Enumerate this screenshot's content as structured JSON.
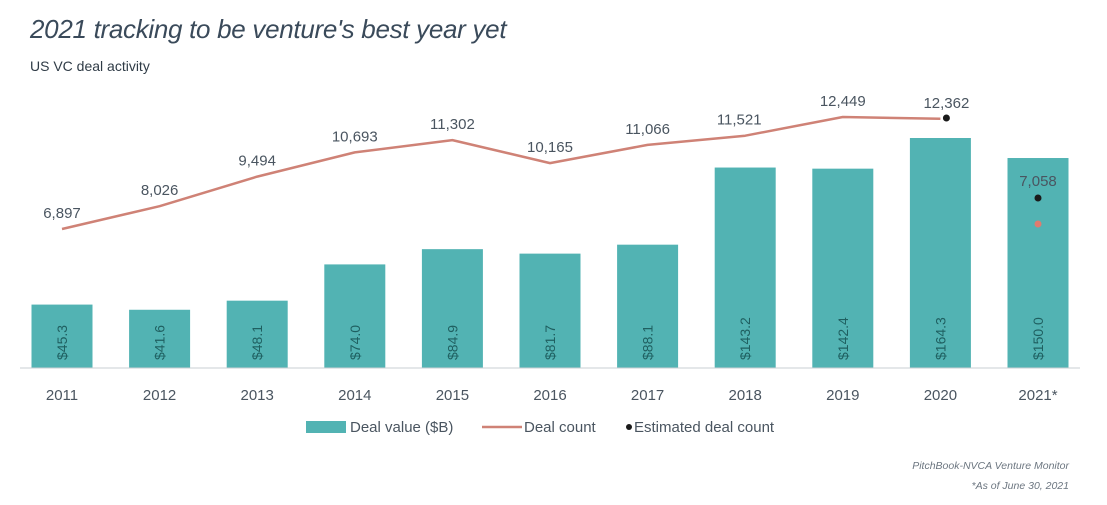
{
  "header": {
    "title": "2021 tracking to be venture's best year yet",
    "subtitle": "US VC deal activity"
  },
  "footer": {
    "source": "PitchBook-NVCA Venture Monitor",
    "note": "*As of June 30, 2021"
  },
  "colors": {
    "bar": "#52b3b3",
    "line": "#cf8276",
    "estimate_dot": "#1a1a1a",
    "estimate_line_point": "#e07b6f",
    "text": "#4a5560"
  },
  "chart_data": {
    "type": "bar",
    "title": "2021 tracking to be venture's best year yet",
    "subtitle": "US VC deal activity",
    "categories": [
      "2011",
      "2012",
      "2013",
      "2014",
      "2015",
      "2016",
      "2017",
      "2018",
      "2019",
      "2020",
      "2021*"
    ],
    "series": [
      {
        "name": "Deal value ($B)",
        "type": "bar",
        "values": [
          45.3,
          41.6,
          48.1,
          74.0,
          84.9,
          81.7,
          88.1,
          143.2,
          142.4,
          164.3,
          150.0
        ],
        "labels": [
          "$45.3",
          "$41.6",
          "$48.1",
          "$74.0",
          "$84.9",
          "$81.7",
          "$88.1",
          "$143.2",
          "$142.4",
          "$164.3",
          "$150.0"
        ]
      },
      {
        "name": "Deal count",
        "type": "line",
        "values": [
          6897,
          8026,
          9494,
          10693,
          11302,
          10165,
          11066,
          11521,
          12449,
          12362,
          7058
        ],
        "labels": [
          "6,897",
          "8,026",
          "9,494",
          "10,693",
          "11,302",
          "10,165",
          "11,066",
          "11,521",
          "12,449",
          "12,362",
          "7,058"
        ]
      },
      {
        "name": "Estimated deal count",
        "type": "scatter",
        "points": [
          {
            "category": "2020",
            "value": 12362
          },
          {
            "category": "2021*",
            "value": 7058
          }
        ]
      }
    ],
    "legend": {
      "position": "bottom",
      "entries": [
        "Deal value ($B)",
        "Deal count",
        "Estimated deal count"
      ]
    },
    "grid": false
  }
}
